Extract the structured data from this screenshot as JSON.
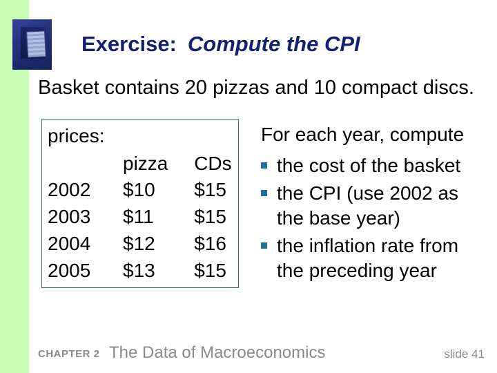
{
  "slide": {
    "title": {
      "prefix": "Exercise:",
      "emphasis": "Compute the CPI"
    },
    "intro": "Basket contains 20 pizzas and 10 compact discs.",
    "price_table": {
      "label": "prices:",
      "columns": {
        "pizza": "pizza",
        "cds": "CDs"
      },
      "rows": [
        {
          "year": "2002",
          "pizza": "$10",
          "cds": "$15"
        },
        {
          "year": "2003",
          "pizza": "$11",
          "cds": "$15"
        },
        {
          "year": "2004",
          "pizza": "$12",
          "cds": "$16"
        },
        {
          "year": "2005",
          "pizza": "$13",
          "cds": "$15"
        }
      ]
    },
    "tasks": {
      "heading": "For each year, compute",
      "items": [
        "the cost of the basket",
        "the CPI (use 2002 as the base year)",
        "the inflation rate from the preceding year"
      ]
    },
    "footer": {
      "chapter": "CHAPTER 2",
      "book": "The Data of Macroeconomics",
      "slide_number": "slide 41"
    },
    "colors": {
      "accent_green": "#c9fdb5",
      "title_navy": "#14226d",
      "box_border_teal": "#2a6b7c",
      "bullet_blue": "#1e6f9e",
      "footer_gray": "#8a8a8a"
    },
    "icons": {
      "logo": "nested-blue-squares-logo"
    }
  }
}
